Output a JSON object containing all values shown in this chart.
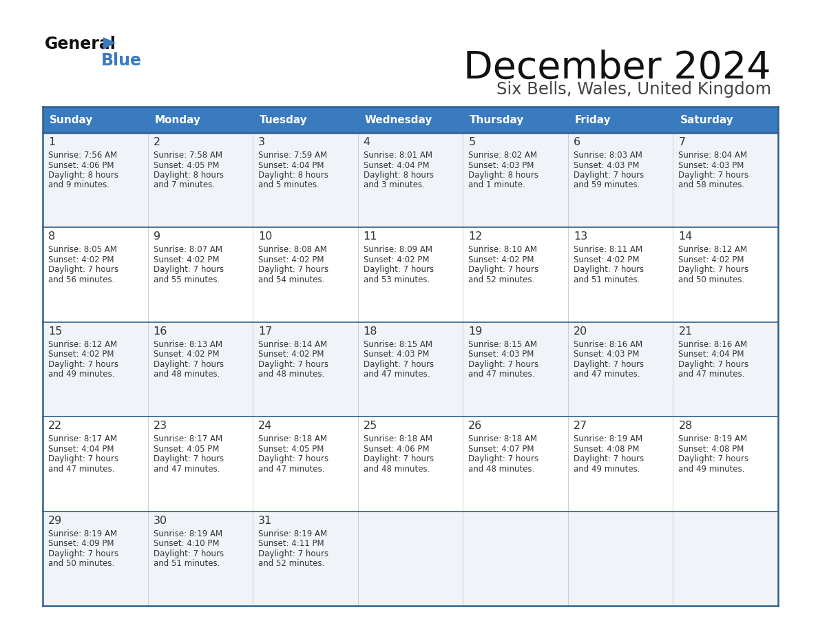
{
  "title": "December 2024",
  "subtitle": "Six Bells, Wales, United Kingdom",
  "header_color": "#3a7abf",
  "header_text_color": "#ffffff",
  "cell_bg_light": "#f0f4f8",
  "cell_bg_white": "#ffffff",
  "border_color": "#2e5f8a",
  "text_color": "#333333",
  "days_of_week": [
    "Sunday",
    "Monday",
    "Tuesday",
    "Wednesday",
    "Thursday",
    "Friday",
    "Saturday"
  ],
  "calendar": [
    [
      {
        "day": 1,
        "sunrise": "7:56 AM",
        "sunset": "4:06 PM",
        "daylight_h": "8 hours",
        "daylight_m": "and 9 minutes."
      },
      {
        "day": 2,
        "sunrise": "7:58 AM",
        "sunset": "4:05 PM",
        "daylight_h": "8 hours",
        "daylight_m": "and 7 minutes."
      },
      {
        "day": 3,
        "sunrise": "7:59 AM",
        "sunset": "4:04 PM",
        "daylight_h": "8 hours",
        "daylight_m": "and 5 minutes."
      },
      {
        "day": 4,
        "sunrise": "8:01 AM",
        "sunset": "4:04 PM",
        "daylight_h": "8 hours",
        "daylight_m": "and 3 minutes."
      },
      {
        "day": 5,
        "sunrise": "8:02 AM",
        "sunset": "4:03 PM",
        "daylight_h": "8 hours",
        "daylight_m": "and 1 minute."
      },
      {
        "day": 6,
        "sunrise": "8:03 AM",
        "sunset": "4:03 PM",
        "daylight_h": "7 hours",
        "daylight_m": "and 59 minutes."
      },
      {
        "day": 7,
        "sunrise": "8:04 AM",
        "sunset": "4:03 PM",
        "daylight_h": "7 hours",
        "daylight_m": "and 58 minutes."
      }
    ],
    [
      {
        "day": 8,
        "sunrise": "8:05 AM",
        "sunset": "4:02 PM",
        "daylight_h": "7 hours",
        "daylight_m": "and 56 minutes."
      },
      {
        "day": 9,
        "sunrise": "8:07 AM",
        "sunset": "4:02 PM",
        "daylight_h": "7 hours",
        "daylight_m": "and 55 minutes."
      },
      {
        "day": 10,
        "sunrise": "8:08 AM",
        "sunset": "4:02 PM",
        "daylight_h": "7 hours",
        "daylight_m": "and 54 minutes."
      },
      {
        "day": 11,
        "sunrise": "8:09 AM",
        "sunset": "4:02 PM",
        "daylight_h": "7 hours",
        "daylight_m": "and 53 minutes."
      },
      {
        "day": 12,
        "sunrise": "8:10 AM",
        "sunset": "4:02 PM",
        "daylight_h": "7 hours",
        "daylight_m": "and 52 minutes."
      },
      {
        "day": 13,
        "sunrise": "8:11 AM",
        "sunset": "4:02 PM",
        "daylight_h": "7 hours",
        "daylight_m": "and 51 minutes."
      },
      {
        "day": 14,
        "sunrise": "8:12 AM",
        "sunset": "4:02 PM",
        "daylight_h": "7 hours",
        "daylight_m": "and 50 minutes."
      }
    ],
    [
      {
        "day": 15,
        "sunrise": "8:12 AM",
        "sunset": "4:02 PM",
        "daylight_h": "7 hours",
        "daylight_m": "and 49 minutes."
      },
      {
        "day": 16,
        "sunrise": "8:13 AM",
        "sunset": "4:02 PM",
        "daylight_h": "7 hours",
        "daylight_m": "and 48 minutes."
      },
      {
        "day": 17,
        "sunrise": "8:14 AM",
        "sunset": "4:02 PM",
        "daylight_h": "7 hours",
        "daylight_m": "and 48 minutes."
      },
      {
        "day": 18,
        "sunrise": "8:15 AM",
        "sunset": "4:03 PM",
        "daylight_h": "7 hours",
        "daylight_m": "and 47 minutes."
      },
      {
        "day": 19,
        "sunrise": "8:15 AM",
        "sunset": "4:03 PM",
        "daylight_h": "7 hours",
        "daylight_m": "and 47 minutes."
      },
      {
        "day": 20,
        "sunrise": "8:16 AM",
        "sunset": "4:03 PM",
        "daylight_h": "7 hours",
        "daylight_m": "and 47 minutes."
      },
      {
        "day": 21,
        "sunrise": "8:16 AM",
        "sunset": "4:04 PM",
        "daylight_h": "7 hours",
        "daylight_m": "and 47 minutes."
      }
    ],
    [
      {
        "day": 22,
        "sunrise": "8:17 AM",
        "sunset": "4:04 PM",
        "daylight_h": "7 hours",
        "daylight_m": "and 47 minutes."
      },
      {
        "day": 23,
        "sunrise": "8:17 AM",
        "sunset": "4:05 PM",
        "daylight_h": "7 hours",
        "daylight_m": "and 47 minutes."
      },
      {
        "day": 24,
        "sunrise": "8:18 AM",
        "sunset": "4:05 PM",
        "daylight_h": "7 hours",
        "daylight_m": "and 47 minutes."
      },
      {
        "day": 25,
        "sunrise": "8:18 AM",
        "sunset": "4:06 PM",
        "daylight_h": "7 hours",
        "daylight_m": "and 48 minutes."
      },
      {
        "day": 26,
        "sunrise": "8:18 AM",
        "sunset": "4:07 PM",
        "daylight_h": "7 hours",
        "daylight_m": "and 48 minutes."
      },
      {
        "day": 27,
        "sunrise": "8:19 AM",
        "sunset": "4:08 PM",
        "daylight_h": "7 hours",
        "daylight_m": "and 49 minutes."
      },
      {
        "day": 28,
        "sunrise": "8:19 AM",
        "sunset": "4:08 PM",
        "daylight_h": "7 hours",
        "daylight_m": "and 49 minutes."
      }
    ],
    [
      {
        "day": 29,
        "sunrise": "8:19 AM",
        "sunset": "4:09 PM",
        "daylight_h": "7 hours",
        "daylight_m": "and 50 minutes."
      },
      {
        "day": 30,
        "sunrise": "8:19 AM",
        "sunset": "4:10 PM",
        "daylight_h": "7 hours",
        "daylight_m": "and 51 minutes."
      },
      {
        "day": 31,
        "sunrise": "8:19 AM",
        "sunset": "4:11 PM",
        "daylight_h": "7 hours",
        "daylight_m": "and 52 minutes."
      },
      null,
      null,
      null,
      null
    ]
  ]
}
